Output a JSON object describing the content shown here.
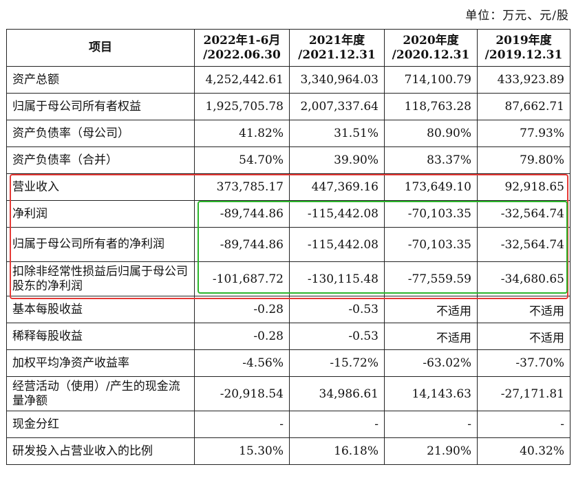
{
  "unit_label": "单位：万元、元/股",
  "header": {
    "item": "项目",
    "periods": [
      {
        "line1": "2022年1-6月",
        "line2": "/2022.06.30"
      },
      {
        "line1": "2021年度",
        "line2": "/2021.12.31"
      },
      {
        "line1": "2020年度",
        "line2": "/2020.12.31"
      },
      {
        "line1": "2019年度",
        "line2": "/2019.12.31"
      }
    ]
  },
  "rows": [
    {
      "label": "资产总额",
      "values": [
        "4,252,442.61",
        "3,340,964.03",
        "714,100.79",
        "433,923.89"
      ]
    },
    {
      "label": "归属于母公司所有者权益",
      "values": [
        "1,925,705.78",
        "2,007,337.64",
        "118,763.28",
        "87,662.71"
      ]
    },
    {
      "label": "资产负债率（母公司）",
      "values": [
        "41.82%",
        "31.51%",
        "80.90%",
        "77.93%"
      ]
    },
    {
      "label": "资产负债率（合并）",
      "values": [
        "54.70%",
        "39.90%",
        "83.37%",
        "79.80%"
      ]
    },
    {
      "label": "营业收入",
      "values": [
        "373,785.17",
        "447,369.16",
        "173,649.10",
        "92,918.65"
      ]
    },
    {
      "label": "净利润",
      "values": [
        "-89,744.86",
        "-115,442.08",
        "-70,103.35",
        "-32,564.74"
      ]
    },
    {
      "label": "归属于母公司所有者的净利润",
      "values": [
        "-89,744.86",
        "-115,442.08",
        "-70,103.35",
        "-32,564.74"
      ]
    },
    {
      "label": "扣除非经常性损益后归属于母公司股东的净利润",
      "values": [
        "-101,687.72",
        "-130,115.48",
        "-77,559.59",
        "-34,680.65"
      ]
    },
    {
      "label": "基本每股收益",
      "values": [
        "-0.28",
        "-0.53",
        "不适用",
        "不适用"
      ]
    },
    {
      "label": "稀释每股收益",
      "values": [
        "-0.28",
        "-0.53",
        "不适用",
        "不适用"
      ]
    },
    {
      "label": "加权平均净资产收益率",
      "values": [
        "-4.56%",
        "-15.72%",
        "-63.02%",
        "-37.70%"
      ]
    },
    {
      "label": "经营活动（使用）/产生的现金流量净额",
      "values": [
        "-20,918.54",
        "34,986.61",
        "14,143.63",
        "-27,171.81"
      ]
    },
    {
      "label": "现金分红",
      "values": [
        "-",
        "-",
        "-",
        "-"
      ]
    },
    {
      "label": "研发投入占营业收入的比例",
      "values": [
        "15.30%",
        "16.18%",
        "21.90%",
        "40.32%"
      ]
    }
  ],
  "highlights": {
    "red_color": "#e53935",
    "green_color": "#2bb52b"
  }
}
